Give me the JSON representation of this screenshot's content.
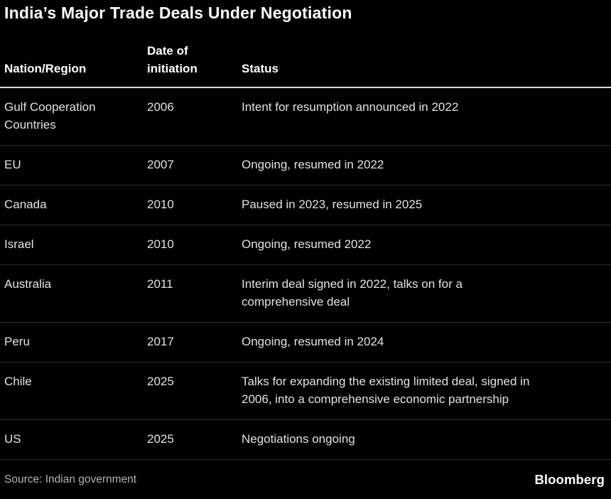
{
  "chart_data": {
    "type": "table",
    "title": "India’s Major Trade Deals Under Negotiation",
    "columns": [
      "Nation/Region",
      "Date of\ninitiation",
      "Status"
    ],
    "rows": [
      {
        "nation": "Gulf Cooperation\nCountries",
        "date": "2006",
        "status": "Intent for resumption announced in 2022"
      },
      {
        "nation": "EU",
        "date": "2007",
        "status": "Ongoing, resumed in 2022"
      },
      {
        "nation": "Canada",
        "date": "2010",
        "status": "Paused in 2023, resumed in 2025"
      },
      {
        "nation": "Israel",
        "date": "2010",
        "status": "Ongoing, resumed 2022"
      },
      {
        "nation": "Australia",
        "date": "2011",
        "status": "Interim deal signed in 2022, talks on for a\ncomprehensive deal"
      },
      {
        "nation": "Peru",
        "date": "2017",
        "status": "Ongoing, resumed in 2024"
      },
      {
        "nation": "Chile",
        "date": "2025",
        "status": "Talks for expanding the existing limited deal, signed in\n2006, into a comprehensive economic partnership"
      },
      {
        "nation": "US",
        "date": "2025",
        "status": "Negotiations ongoing"
      }
    ],
    "source": "Source: Indian government",
    "brand": "Bloomberg",
    "layout": {
      "legend": "none",
      "grid": "horizontal-row-separators",
      "header_rule": "bright",
      "background": "dark"
    }
  },
  "colors": {
    "background": "#000000",
    "title_text": "#ffffff",
    "header_text": "#ffffff",
    "body_text": "#e2e2e2",
    "muted_text": "#b3b3b3",
    "header_rule": "#d9d9d9",
    "row_separator": "#2e2e2e"
  }
}
